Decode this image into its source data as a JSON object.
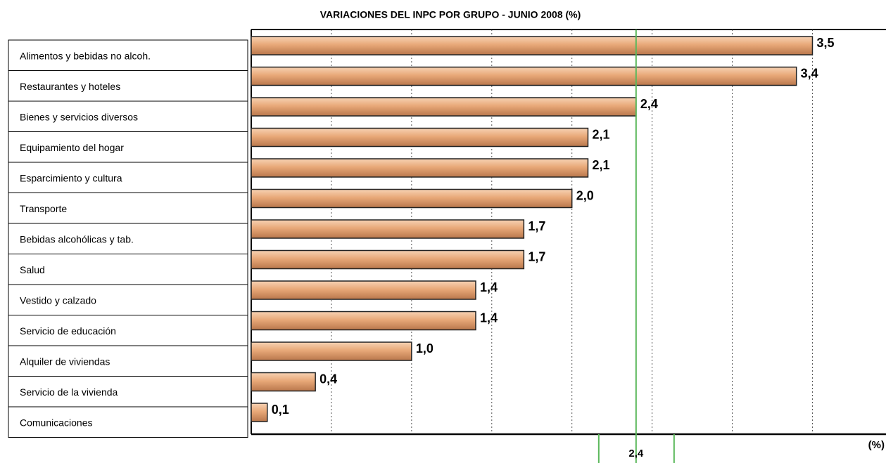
{
  "chart_data": {
    "type": "barh",
    "title": "VARIACIONES DEL INPC POR GRUPO - JUNIO 2008 (%)",
    "x_label": "(%)",
    "categories": [
      "Alimentos y bebidas no alcoh.",
      "Restaurantes y hoteles",
      "Bienes y servicios diversos",
      "Equipamiento del hogar",
      "Esparcimiento y cultura",
      "Transporte",
      "Bebidas alcohólicas y tab.",
      "Salud",
      "Vestido y calzado",
      "Servicio de educación",
      "Alquiler de viviendas",
      "Servicio de la vivienda",
      "Comunicaciones"
    ],
    "values": [
      3.5,
      3.4,
      2.4,
      2.1,
      2.1,
      2.0,
      1.7,
      1.7,
      1.4,
      1.4,
      1.0,
      0.4,
      0.1
    ],
    "value_labels": [
      "3,5",
      "3,4",
      "2,4",
      "2,1",
      "2,1",
      "2,0",
      "1,7",
      "1,7",
      "1,4",
      "1,4",
      "1,0",
      "0,4",
      "0,1"
    ],
    "color": "#e8a878",
    "xlim": [
      0,
      3.95
    ],
    "xticks": [
      0.5,
      1.0,
      1.5,
      2.0,
      2.5,
      3.0,
      3.5
    ],
    "grid": true,
    "reference_line": {
      "value": 2.4,
      "label": "2,4",
      "color": "#5cb85c"
    }
  }
}
